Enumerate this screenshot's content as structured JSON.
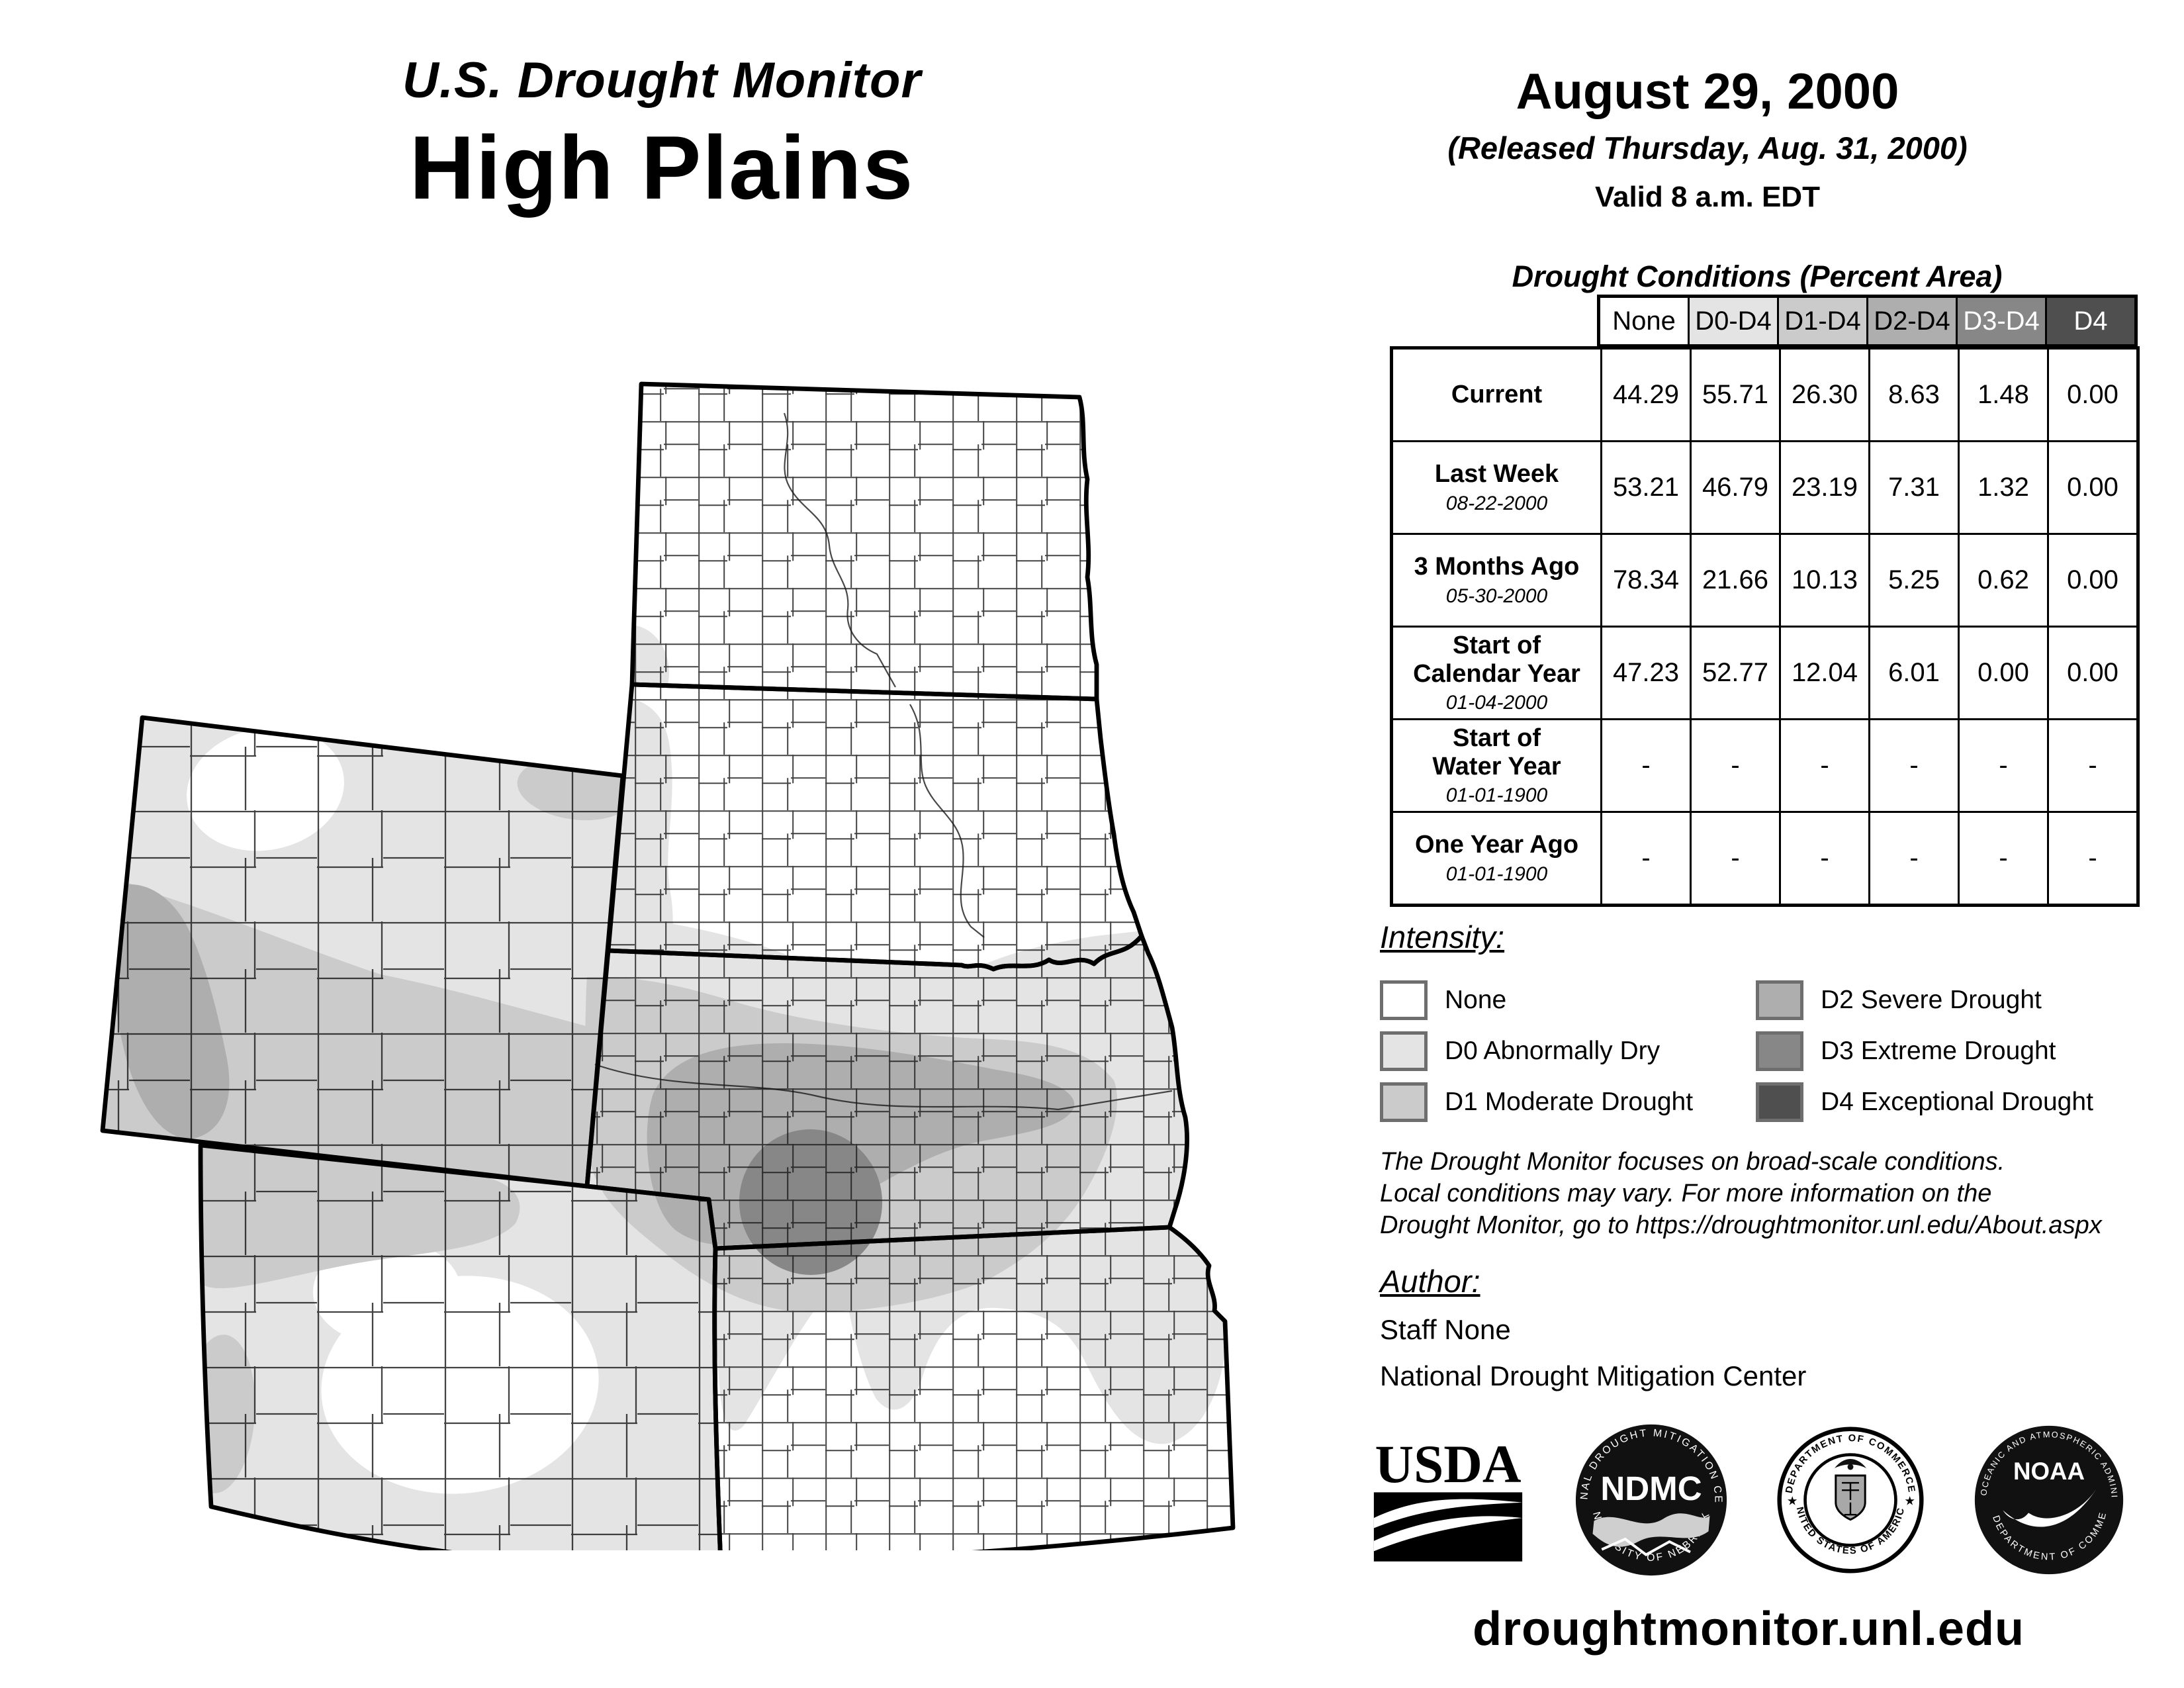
{
  "title_block": {
    "line1": "U.S. Drought Monitor",
    "line2": "High Plains"
  },
  "date_block": {
    "date": "August 29, 2000",
    "released": "(Released Thursday, Aug. 31, 2000)",
    "valid": "Valid 8 a.m. EDT"
  },
  "conditions_table": {
    "title": "Drought Conditions (Percent Area)",
    "columns": [
      "None",
      "D0-D4",
      "D1-D4",
      "D2-D4",
      "D3-D4",
      "D4"
    ],
    "rows": [
      {
        "label": "Current",
        "sublabel": "",
        "values": [
          "44.29",
          "55.71",
          "26.30",
          "8.63",
          "1.48",
          "0.00"
        ]
      },
      {
        "label": "Last Week",
        "sublabel": "08-22-2000",
        "values": [
          "53.21",
          "46.79",
          "23.19",
          "7.31",
          "1.32",
          "0.00"
        ]
      },
      {
        "label": "3 Months Ago",
        "sublabel": "05-30-2000",
        "values": [
          "78.34",
          "21.66",
          "10.13",
          "5.25",
          "0.62",
          "0.00"
        ]
      },
      {
        "label": "Start of\nCalendar Year",
        "sublabel": "01-04-2000",
        "values": [
          "47.23",
          "52.77",
          "12.04",
          "6.01",
          "0.00",
          "0.00"
        ]
      },
      {
        "label": "Start of\nWater Year",
        "sublabel": "01-01-1900",
        "values": [
          "-",
          "-",
          "-",
          "-",
          "-",
          "-"
        ]
      },
      {
        "label": "One Year Ago",
        "sublabel": "01-01-1900",
        "values": [
          "-",
          "-",
          "-",
          "-",
          "-",
          "-"
        ]
      }
    ]
  },
  "legend": {
    "title": "Intensity:",
    "items": [
      {
        "key": "none",
        "label": "None",
        "color": "#ffffff"
      },
      {
        "key": "d0",
        "label": "D0 Abnormally Dry",
        "color": "#e4e4e4"
      },
      {
        "key": "d1",
        "label": "D1 Moderate Drought",
        "color": "#cbcbcb"
      },
      {
        "key": "d2",
        "label": "D2 Severe Drought",
        "color": "#aeaeae"
      },
      {
        "key": "d3",
        "label": "D3 Extreme Drought",
        "color": "#878787"
      },
      {
        "key": "d4",
        "label": "D4 Exceptional Drought",
        "color": "#4f4f4f"
      }
    ]
  },
  "disclaimer": "The Drought Monitor focuses on broad-scale conditions.\nLocal conditions may vary. For more information on the\nDrought Monitor, go to https://droughtmonitor.unl.edu/About.aspx",
  "author_block": {
    "title": "Author:",
    "name": "Staff None",
    "org": "National Drought Mitigation Center"
  },
  "logos": {
    "usda": "USDA",
    "ndmc": {
      "center": "NDMC",
      "ring_top": "NATIONAL DROUGHT MITIGATION CENTER",
      "ring_bottom": "UNIVERSITY OF NEBRASKA"
    },
    "doc": {
      "ring_top": "DEPARTMENT OF COMMERCE",
      "ring_bottom": "UNITED STATES OF AMERICA"
    },
    "noaa": {
      "center": "NOAA",
      "ring_top": "NATIONAL OCEANIC AND ATMOSPHERIC ADMINISTRATION",
      "ring_bottom": "U.S. DEPARTMENT OF COMMERCE"
    }
  },
  "footer": {
    "url": "droughtmonitor.unl.edu"
  },
  "map": {
    "type": "choropleth-drought-map",
    "intensity_colors": {
      "none": "#ffffff",
      "d0": "#e4e4e4",
      "d1": "#cbcbcb",
      "d2": "#aeaeae",
      "d3": "#878787",
      "d4": "#4f4f4f"
    }
  }
}
